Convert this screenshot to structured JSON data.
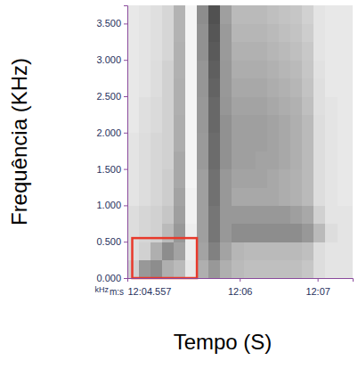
{
  "chart_data": {
    "type": "spectrogram",
    "xlabel": "Tempo (S)",
    "ylabel": "Frequência (KHz)",
    "x_unit_label": "m:s",
    "y_unit_label": "kHz",
    "xlim": [
      724.557,
      727.45
    ],
    "ylim": [
      0,
      3.75
    ],
    "xticks": [
      {
        "value": 724.557,
        "label": "12:04.557"
      },
      {
        "value": 726,
        "label": "12:06"
      },
      {
        "value": 727,
        "label": "12:07"
      }
    ],
    "yticks": [
      {
        "value": 0,
        "label": "0.000"
      },
      {
        "value": 0.5,
        "label": "0.500"
      },
      {
        "value": 1,
        "label": "1.000"
      },
      {
        "value": 1.5,
        "label": "1.500"
      },
      {
        "value": 2,
        "label": "2.000"
      },
      {
        "value": 2.5,
        "label": "2.500"
      },
      {
        "value": 3,
        "label": "3.000"
      },
      {
        "value": 3.5,
        "label": "3.500"
      }
    ],
    "grid": false,
    "color": "#1a1a1a",
    "color_range": [
      0,
      1
    ],
    "x_edges": [
      724.557,
      724.7,
      724.85,
      725.0,
      725.15,
      725.3,
      725.45,
      725.6,
      725.75,
      725.9,
      726.05,
      726.2,
      726.35,
      726.5,
      726.65,
      726.8,
      726.95,
      727.1,
      727.25,
      727.45
    ],
    "y_edges": [
      0,
      0.25,
      0.5,
      0.75,
      1,
      1.25,
      1.5,
      1.75,
      2,
      2.25,
      2.5,
      2.75,
      3,
      3.25,
      3.5,
      3.75
    ],
    "cells": [
      [
        0.2,
        0.45,
        0.5,
        0.35,
        0.3,
        0.1,
        0.35,
        0.45,
        0.35,
        0.3,
        0.28,
        0.28,
        0.28,
        0.28,
        0.28,
        0.25,
        0.15,
        0.12,
        0.12
      ],
      [
        0.15,
        0.2,
        0.35,
        0.5,
        0.4,
        0.08,
        0.4,
        0.55,
        0.4,
        0.32,
        0.3,
        0.3,
        0.3,
        0.3,
        0.3,
        0.28,
        0.15,
        0.12,
        0.12
      ],
      [
        0.15,
        0.18,
        0.2,
        0.3,
        0.45,
        0.08,
        0.42,
        0.6,
        0.45,
        0.5,
        0.5,
        0.5,
        0.5,
        0.5,
        0.5,
        0.45,
        0.3,
        0.15,
        0.12
      ],
      [
        0.15,
        0.18,
        0.2,
        0.25,
        0.42,
        0.06,
        0.42,
        0.6,
        0.45,
        0.45,
        0.45,
        0.45,
        0.45,
        0.45,
        0.42,
        0.38,
        0.2,
        0.12,
        0.12
      ],
      [
        0.12,
        0.15,
        0.18,
        0.22,
        0.4,
        0.06,
        0.42,
        0.62,
        0.45,
        0.38,
        0.38,
        0.38,
        0.38,
        0.36,
        0.34,
        0.3,
        0.15,
        0.12,
        0.1
      ],
      [
        0.12,
        0.15,
        0.18,
        0.22,
        0.38,
        0.05,
        0.42,
        0.62,
        0.45,
        0.4,
        0.4,
        0.4,
        0.38,
        0.36,
        0.34,
        0.3,
        0.15,
        0.12,
        0.1
      ],
      [
        0.12,
        0.15,
        0.18,
        0.2,
        0.38,
        0.05,
        0.44,
        0.64,
        0.48,
        0.42,
        0.42,
        0.4,
        0.4,
        0.38,
        0.35,
        0.3,
        0.15,
        0.12,
        0.1
      ],
      [
        0.12,
        0.15,
        0.18,
        0.2,
        0.36,
        0.05,
        0.44,
        0.64,
        0.48,
        0.42,
        0.42,
        0.42,
        0.4,
        0.38,
        0.35,
        0.3,
        0.15,
        0.12,
        0.1
      ],
      [
        0.1,
        0.14,
        0.16,
        0.2,
        0.36,
        0.05,
        0.45,
        0.66,
        0.48,
        0.42,
        0.42,
        0.42,
        0.4,
        0.38,
        0.35,
        0.3,
        0.15,
        0.12,
        0.1
      ],
      [
        0.1,
        0.14,
        0.16,
        0.2,
        0.35,
        0.05,
        0.45,
        0.66,
        0.46,
        0.4,
        0.4,
        0.4,
        0.38,
        0.36,
        0.34,
        0.28,
        0.14,
        0.12,
        0.1
      ],
      [
        0.1,
        0.12,
        0.15,
        0.2,
        0.35,
        0.05,
        0.46,
        0.68,
        0.45,
        0.38,
        0.38,
        0.38,
        0.36,
        0.34,
        0.32,
        0.26,
        0.14,
        0.1,
        0.1
      ],
      [
        0.1,
        0.12,
        0.15,
        0.2,
        0.34,
        0.05,
        0.46,
        0.7,
        0.45,
        0.36,
        0.36,
        0.36,
        0.34,
        0.32,
        0.3,
        0.25,
        0.13,
        0.1,
        0.1
      ],
      [
        0.1,
        0.12,
        0.14,
        0.18,
        0.34,
        0.05,
        0.48,
        0.72,
        0.44,
        0.34,
        0.34,
        0.34,
        0.32,
        0.3,
        0.28,
        0.24,
        0.12,
        0.1,
        0.1
      ],
      [
        0.1,
        0.12,
        0.14,
        0.18,
        0.33,
        0.05,
        0.48,
        0.74,
        0.44,
        0.32,
        0.32,
        0.32,
        0.3,
        0.28,
        0.26,
        0.22,
        0.12,
        0.1,
        0.1
      ],
      [
        0.1,
        0.12,
        0.14,
        0.18,
        0.33,
        0.05,
        0.5,
        0.76,
        0.42,
        0.3,
        0.3,
        0.3,
        0.28,
        0.26,
        0.25,
        0.2,
        0.12,
        0.1,
        0.1
      ]
    ],
    "highlight": {
      "x": [
        724.62,
        725.45
      ],
      "y": [
        0,
        0.55
      ],
      "color": "#e8392b"
    }
  }
}
